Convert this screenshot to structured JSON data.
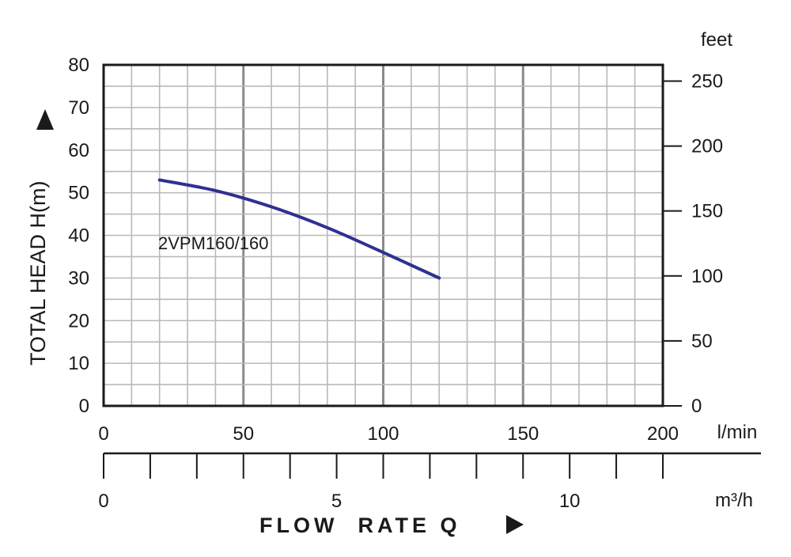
{
  "chart_data": {
    "type": "line",
    "title": "",
    "xlabel": "FLOW  RATE Q",
    "ylabel": "TOTAL HEAD H(m)",
    "x_unit": "l/min",
    "xlim": [
      0,
      200
    ],
    "x_ticks": [
      "0",
      "50",
      "100",
      "150",
      "200"
    ],
    "ylim": [
      0,
      80
    ],
    "y_ticks": [
      "0",
      "10",
      "20",
      "30",
      "40",
      "50",
      "60",
      "70",
      "80"
    ],
    "y2_unit": "feet",
    "y2_ticks": [
      "0",
      "50",
      "100",
      "150",
      "200",
      "250"
    ],
    "x2_unit": "m³/h",
    "x2_ticks": [
      "0",
      "5",
      "10"
    ],
    "grid": true,
    "series": [
      {
        "name": "2VPM160/160",
        "color": "#2e3192",
        "x": [
          20,
          40,
          60,
          80,
          100,
          120
        ],
        "y": [
          53,
          50.5,
          46.7,
          41.8,
          36,
          30
        ]
      }
    ]
  }
}
